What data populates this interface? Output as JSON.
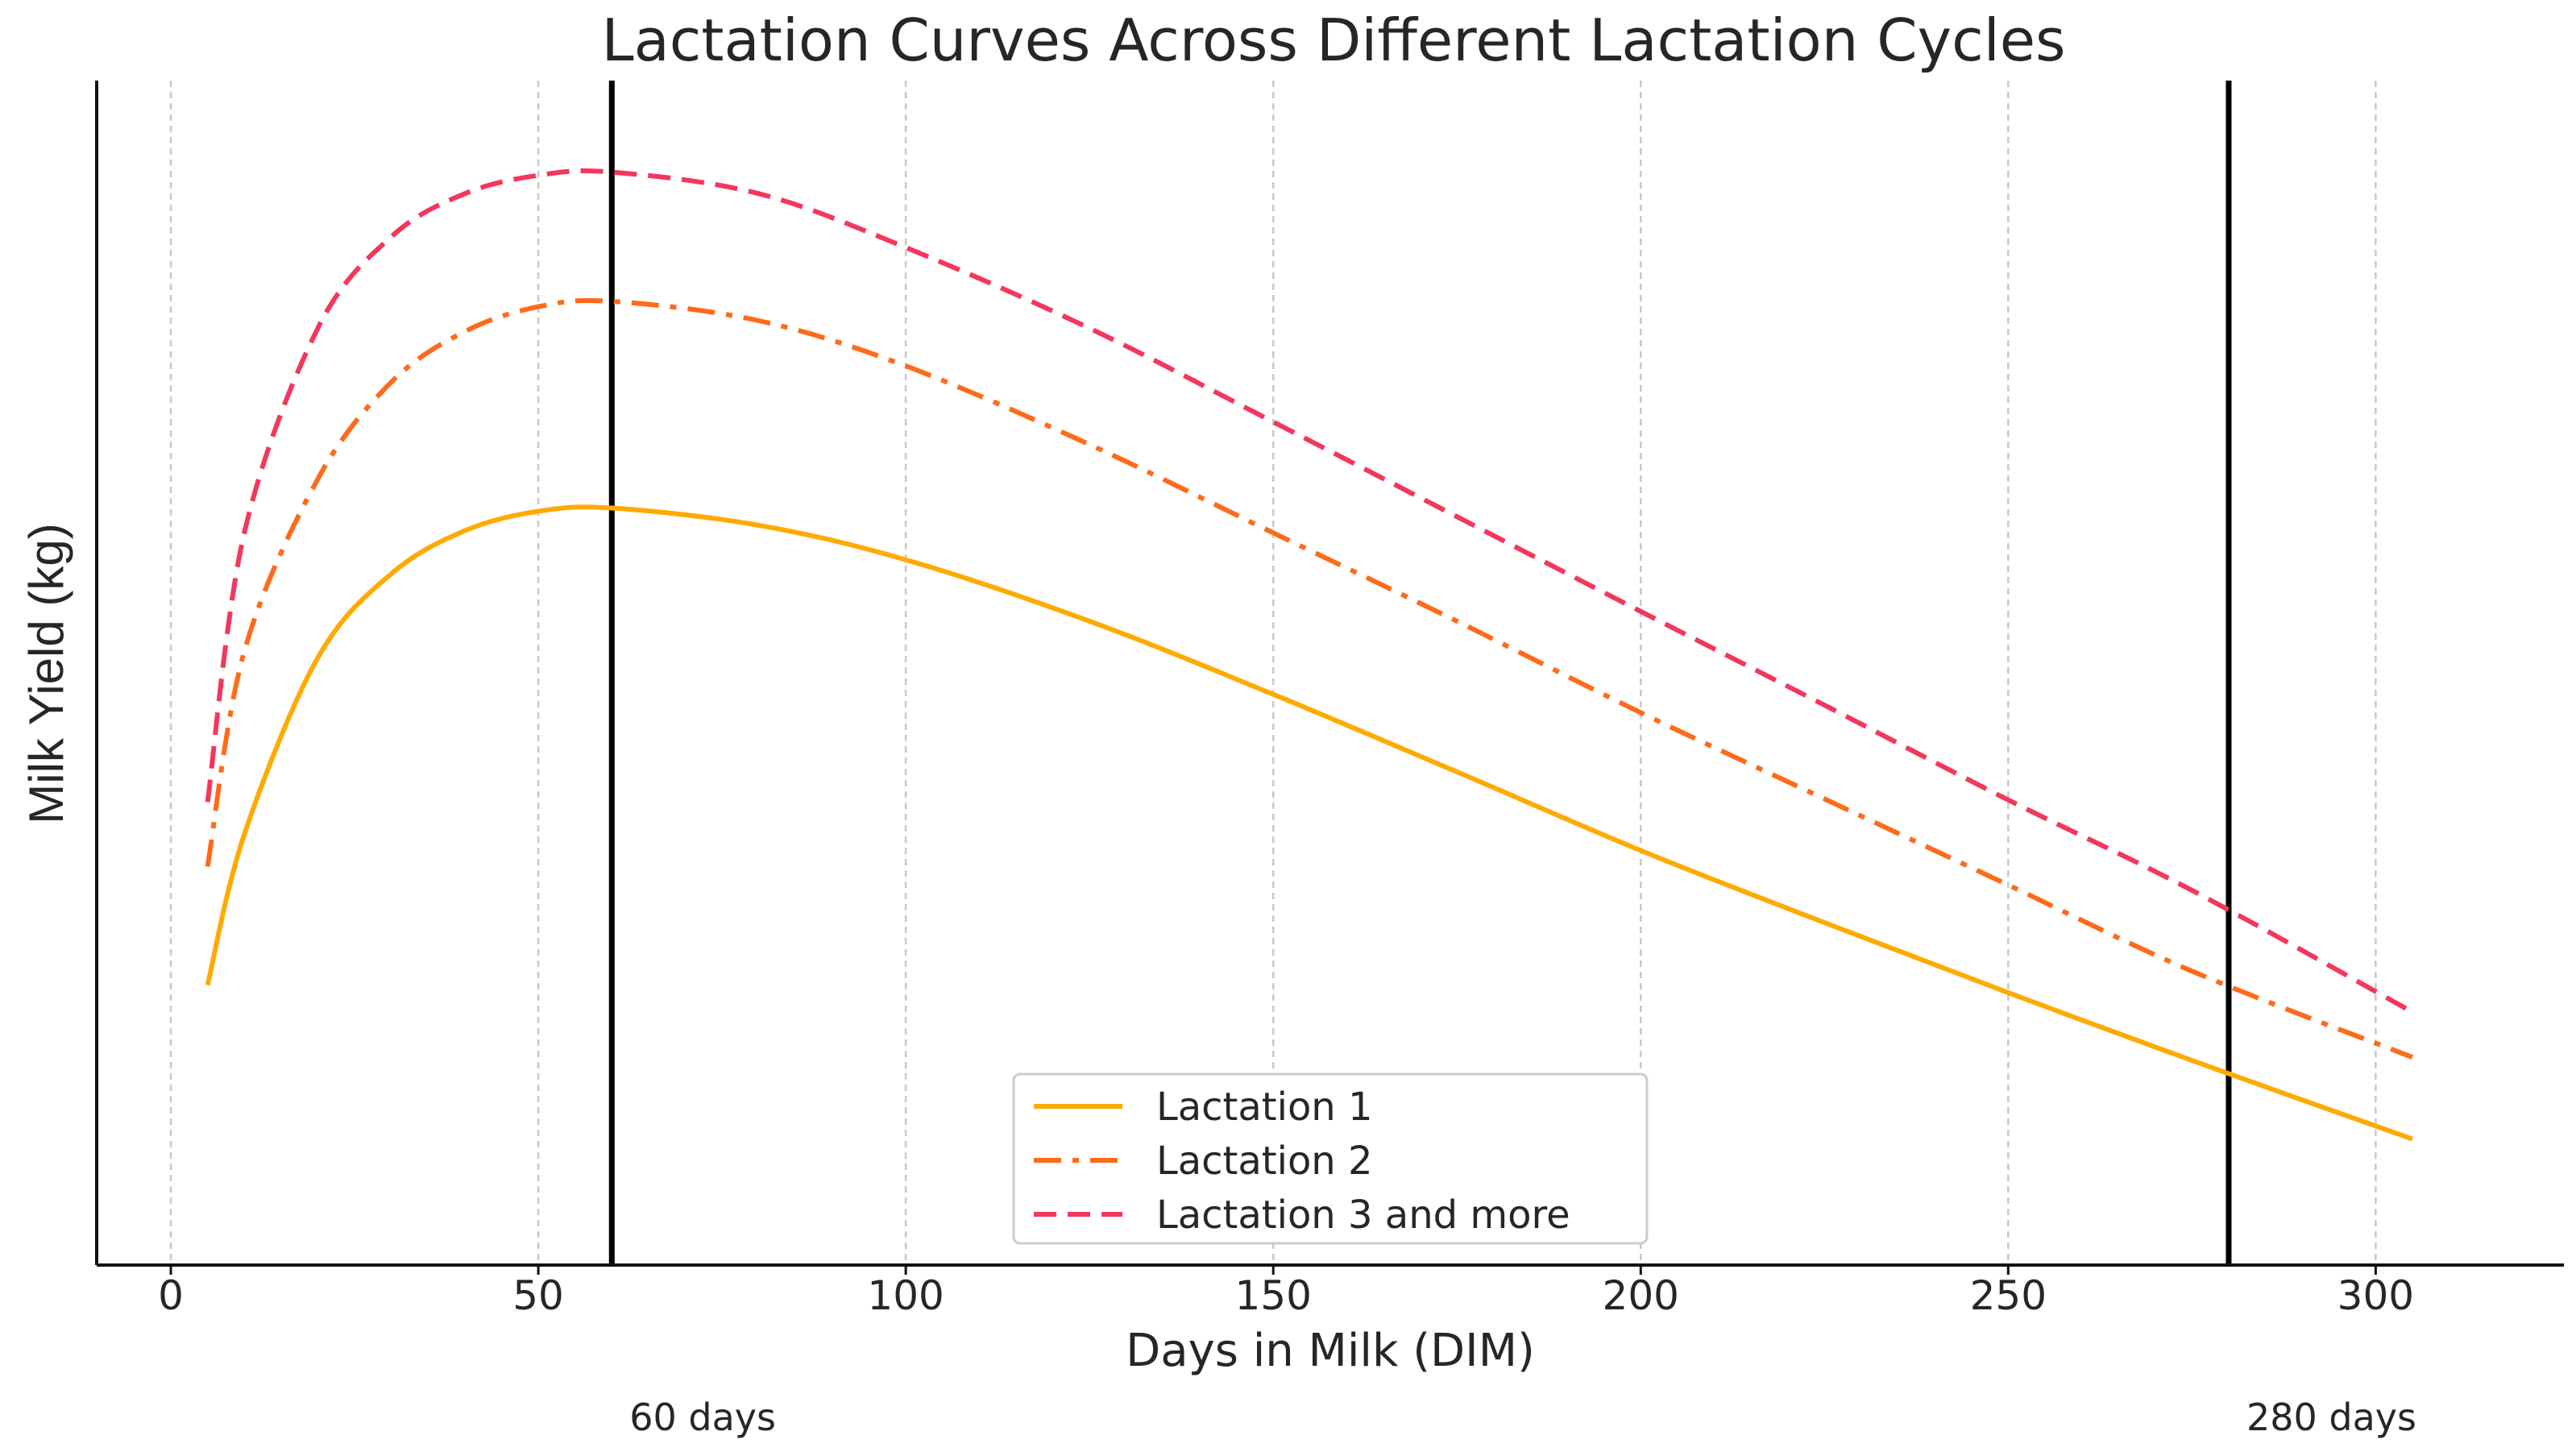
{
  "chart_data": {
    "type": "line",
    "title": "Lactation Curves Across Different Lactation Cycles",
    "xlabel": "Days in Milk (DIM)",
    "ylabel": "Milk Yield (kg)",
    "xlim": [
      -10,
      320
    ],
    "ylim": [
      0,
      1.1
    ],
    "x_ticks": [
      "0",
      "50",
      "100",
      "150",
      "200",
      "250",
      "300"
    ],
    "y_ticks_shown": false,
    "grid": "vertical dashed",
    "legend_position": "lower-center",
    "series": [
      {
        "name": "Lactation 1",
        "color": "#ffaa00",
        "style": "solid",
        "x": [
          5,
          10,
          20,
          30,
          40,
          50,
          60,
          80,
          100,
          125,
          150,
          175,
          200,
          225,
          250,
          275,
          305
        ],
        "y": [
          0.26,
          0.4,
          0.564,
          0.642,
          0.682,
          0.7,
          0.703,
          0.687,
          0.655,
          0.598,
          0.53,
          0.458,
          0.385,
          0.318,
          0.253,
          0.19,
          0.117
        ]
      },
      {
        "name": "Lactation 2",
        "color": "#ff6a1a",
        "style": "dashdot",
        "x": [
          5,
          10,
          20,
          30,
          40,
          50,
          60,
          80,
          100,
          125,
          150,
          175,
          200,
          225,
          250,
          275,
          305
        ],
        "y": [
          0.37,
          0.57,
          0.73,
          0.82,
          0.867,
          0.89,
          0.895,
          0.877,
          0.835,
          0.762,
          0.68,
          0.598,
          0.513,
          0.433,
          0.353,
          0.273,
          0.193
        ]
      },
      {
        "name": "Lactation 3 and more",
        "color": "#f5365c",
        "style": "dashed",
        "x": [
          5,
          10,
          20,
          30,
          40,
          50,
          60,
          80,
          100,
          125,
          150,
          175,
          200,
          225,
          250,
          275,
          305
        ],
        "y": [
          0.43,
          0.68,
          0.87,
          0.955,
          0.995,
          1.012,
          1.015,
          0.995,
          0.945,
          0.87,
          0.783,
          0.695,
          0.607,
          0.52,
          0.432,
          0.348,
          0.235
        ]
      }
    ],
    "vertical_markers": [
      {
        "x": 60,
        "label": "60 days"
      },
      {
        "x": 280,
        "label": "280 days"
      }
    ]
  }
}
